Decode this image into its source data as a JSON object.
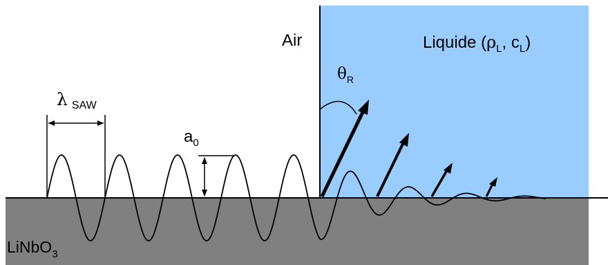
{
  "labels": {
    "air": "Air",
    "liquid_prefix": "Liquide (",
    "rho": "ρ",
    "rho_sub": "L",
    "sep": ", c",
    "c_sub": "L",
    "liquid_suffix": ")",
    "theta": "θ",
    "theta_sub": "R",
    "lambda": "λ",
    "lambda_sub": "SAW",
    "a": "a",
    "a_sub": "0",
    "substrate": "LiNbO",
    "substrate_sub": "3"
  },
  "colors": {
    "liquid": "#99ccff",
    "substrate": "#808080",
    "stroke": "#000000"
  }
}
